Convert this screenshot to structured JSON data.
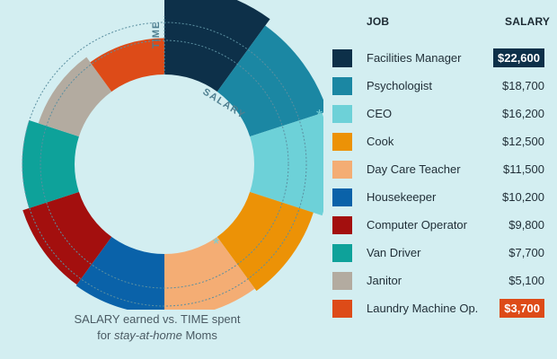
{
  "caption": {
    "line1": "SALARY earned vs. TIME spent",
    "line2_prefix": "for ",
    "line2_em": "stay-at-home",
    "line2_suffix": " Moms"
  },
  "headers": {
    "job": "JOB",
    "salary": "SALARY"
  },
  "marker": "*",
  "chart_data": {
    "type": "radial-bar",
    "ring_labels": {
      "inner": "SALARY",
      "outer": "TIME"
    },
    "categories": [
      "Facilities Manager",
      "Psychologist",
      "CEO",
      "Cook",
      "Day Care Teacher",
      "Housekeeper",
      "Computer Operator",
      "Van Driver",
      "Janitor",
      "Laundry Machine Op."
    ],
    "salary_labels": [
      "$22,600",
      "$18,700",
      "$16,200",
      "$12,500",
      "$11,500",
      "$10,200",
      "$9,800",
      "$7,700",
      "$5,100",
      "$3,700"
    ],
    "values": [
      22600,
      18700,
      16200,
      12500,
      11500,
      10200,
      9800,
      7700,
      5100,
      3700
    ],
    "colors": [
      "#0d3049",
      "#1b87a3",
      "#6dd1d8",
      "#ec9206",
      "#f4ad74",
      "#0a62a9",
      "#a30f0e",
      "#0ea29a",
      "#b3aba0",
      "#dd4b18"
    ],
    "highlight": {
      "Facilities Manager": "#0d3049",
      "Laundry Machine Op.": "#dd4b18"
    },
    "marked_category": "CEO"
  }
}
